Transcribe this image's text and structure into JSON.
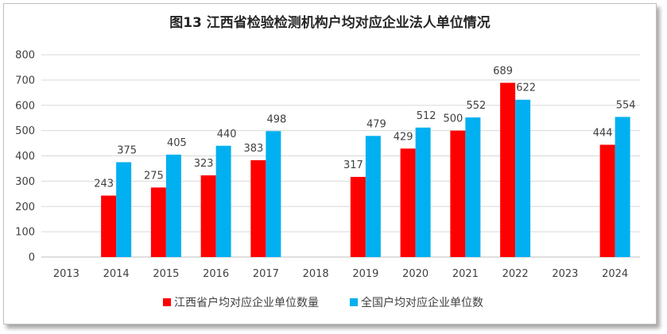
{
  "chart_data": {
    "type": "bar",
    "title": "图13  江西省检验检测机构户均对应企业法人单位情况",
    "categories": [
      "2013",
      "2014",
      "2015",
      "2016",
      "2017",
      "2018",
      "2019",
      "2020",
      "2021",
      "2022",
      "2023",
      "2024"
    ],
    "series": [
      {
        "name": "江西省户均对应企业单位数量",
        "color": "#ff0000",
        "values": [
          null,
          243,
          275,
          323,
          383,
          null,
          317,
          429,
          500,
          689,
          null,
          444
        ]
      },
      {
        "name": "全国户均对应企业单位数",
        "color": "#00b0f0",
        "values": [
          null,
          375,
          405,
          440,
          498,
          null,
          479,
          512,
          552,
          622,
          null,
          554
        ]
      }
    ],
    "ylim": [
      0,
      800
    ],
    "yticks": [
      0,
      100,
      200,
      300,
      400,
      500,
      600,
      700,
      800
    ],
    "grid": true,
    "legend_position": "bottom"
  }
}
